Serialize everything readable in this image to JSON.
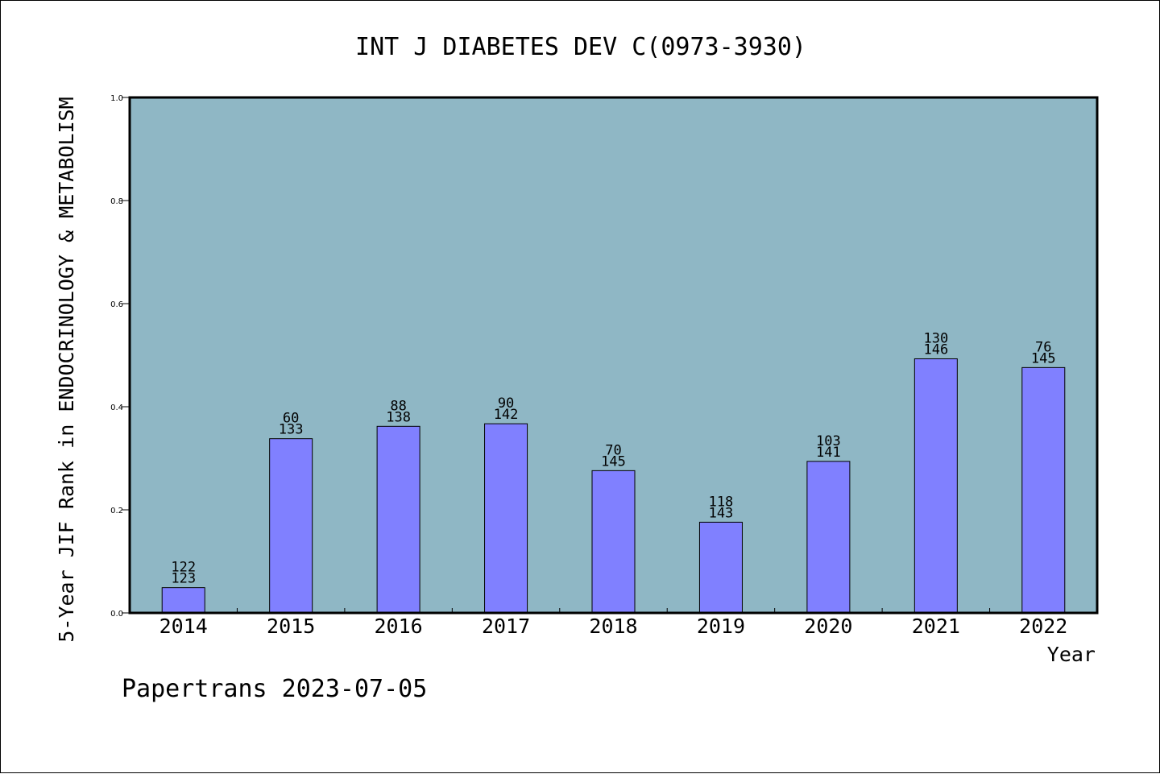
{
  "chart_data": {
    "type": "bar",
    "title": "INT J DIABETES DEV C(0973-3930)",
    "xlabel": "Year",
    "ylabel": "5-Year JIF Rank in ENDOCRINOLOGY & METABOLISM",
    "ylim": [
      0,
      1.0
    ],
    "y_ticks": [
      "0.0",
      "0.2",
      "0.4",
      "0.6",
      "0.8",
      "1.0"
    ],
    "categories": [
      "2014",
      "2015",
      "2016",
      "2017",
      "2018",
      "2019",
      "2020",
      "2021",
      "2022"
    ],
    "values": [
      0.049,
      0.338,
      0.362,
      0.367,
      0.276,
      0.176,
      0.294,
      0.493,
      0.476
    ],
    "rank": [
      "122",
      "60",
      "88",
      "90",
      "70",
      "118",
      "103",
      "130",
      "76"
    ],
    "total": [
      "123",
      "133",
      "138",
      "142",
      "145",
      "143",
      "141",
      "146",
      "145"
    ],
    "grid": false,
    "colors": {
      "plot_background": "#8fb7c5",
      "bar_fill": "#8080ff",
      "bar_stroke": "#000000"
    }
  },
  "footer": {
    "credit": "Papertrans 2023-07-05"
  }
}
